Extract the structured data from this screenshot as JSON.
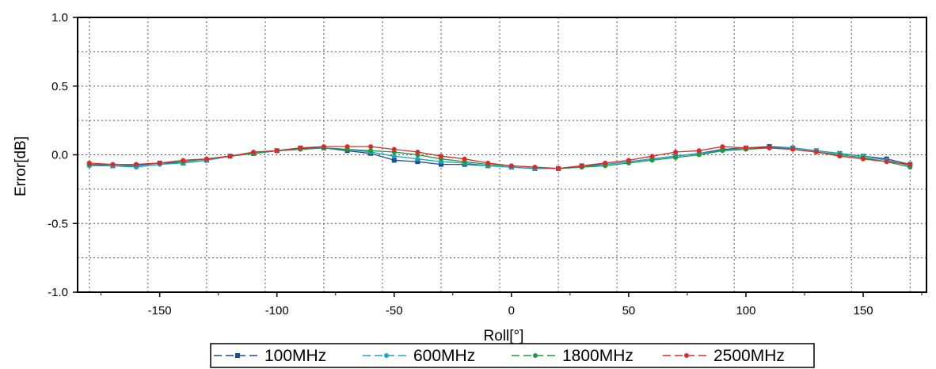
{
  "chart_data": {
    "type": "line",
    "xlabel": "Roll[°]",
    "ylabel": "Error[dB]",
    "xlim": [
      -185,
      177
    ],
    "ylim": [
      -1.0,
      1.0
    ],
    "xticks": [
      -150,
      -100,
      -50,
      0,
      50,
      100,
      150
    ],
    "xtick_labels": [
      "-150",
      "-100",
      "-50",
      "0",
      "50",
      "100",
      "150"
    ],
    "yticks": [
      1.0,
      0.5,
      0.0,
      -0.5,
      -1.0
    ],
    "ytick_labels": [
      "1.0",
      "0.5",
      "0.0",
      "-0.5",
      "-1.0"
    ],
    "grid": true,
    "legend_position": "bottom",
    "x": [
      -180,
      -170,
      -160,
      -150,
      -140,
      -130,
      -120,
      -110,
      -100,
      -90,
      -80,
      -70,
      -60,
      -50,
      -40,
      -30,
      -20,
      -10,
      0,
      10,
      20,
      30,
      40,
      50,
      60,
      70,
      80,
      90,
      100,
      110,
      120,
      130,
      140,
      150,
      160,
      170
    ],
    "series": [
      {
        "name": "100MHz",
        "color": "#1f4e8c",
        "marker": "square",
        "values": [
          -0.07,
          -0.08,
          -0.08,
          -0.06,
          -0.06,
          -0.04,
          -0.01,
          0.01,
          0.03,
          0.05,
          0.05,
          0.03,
          0.01,
          -0.04,
          -0.05,
          -0.07,
          -0.07,
          -0.08,
          -0.09,
          -0.1,
          -0.1,
          -0.08,
          -0.07,
          -0.05,
          -0.03,
          -0.01,
          0.01,
          0.04,
          0.05,
          0.06,
          0.05,
          0.03,
          0.01,
          -0.01,
          -0.03,
          -0.07
        ]
      },
      {
        "name": "600MHz",
        "color": "#1aa3c8",
        "marker": "circle",
        "values": [
          -0.08,
          -0.08,
          -0.09,
          -0.07,
          -0.06,
          -0.04,
          -0.01,
          0.01,
          0.03,
          0.04,
          0.05,
          0.04,
          0.02,
          -0.01,
          -0.03,
          -0.05,
          -0.06,
          -0.08,
          -0.09,
          -0.1,
          -0.1,
          -0.09,
          -0.07,
          -0.05,
          -0.03,
          -0.01,
          0.01,
          0.03,
          0.05,
          0.05,
          0.05,
          0.03,
          0.01,
          -0.01,
          -0.04,
          -0.08
        ]
      },
      {
        "name": "1800MHz",
        "color": "#1e9a3c",
        "marker": "circle",
        "values": [
          -0.07,
          -0.07,
          -0.07,
          -0.06,
          -0.05,
          -0.03,
          -0.01,
          0.01,
          0.03,
          0.04,
          0.05,
          0.04,
          0.03,
          0.02,
          0.0,
          -0.03,
          -0.05,
          -0.07,
          -0.08,
          -0.09,
          -0.1,
          -0.09,
          -0.08,
          -0.06,
          -0.04,
          -0.02,
          0.0,
          0.03,
          0.04,
          0.05,
          0.04,
          0.02,
          0.0,
          -0.02,
          -0.05,
          -0.09
        ]
      },
      {
        "name": "2500MHz",
        "color": "#d92b2b",
        "marker": "circle",
        "values": [
          -0.06,
          -0.07,
          -0.07,
          -0.06,
          -0.04,
          -0.03,
          -0.01,
          0.02,
          0.03,
          0.05,
          0.06,
          0.06,
          0.06,
          0.04,
          0.02,
          -0.01,
          -0.03,
          -0.06,
          -0.08,
          -0.09,
          -0.1,
          -0.08,
          -0.06,
          -0.04,
          -0.01,
          0.02,
          0.03,
          0.06,
          0.05,
          0.05,
          0.04,
          0.02,
          -0.01,
          -0.03,
          -0.05,
          -0.07
        ]
      }
    ]
  }
}
